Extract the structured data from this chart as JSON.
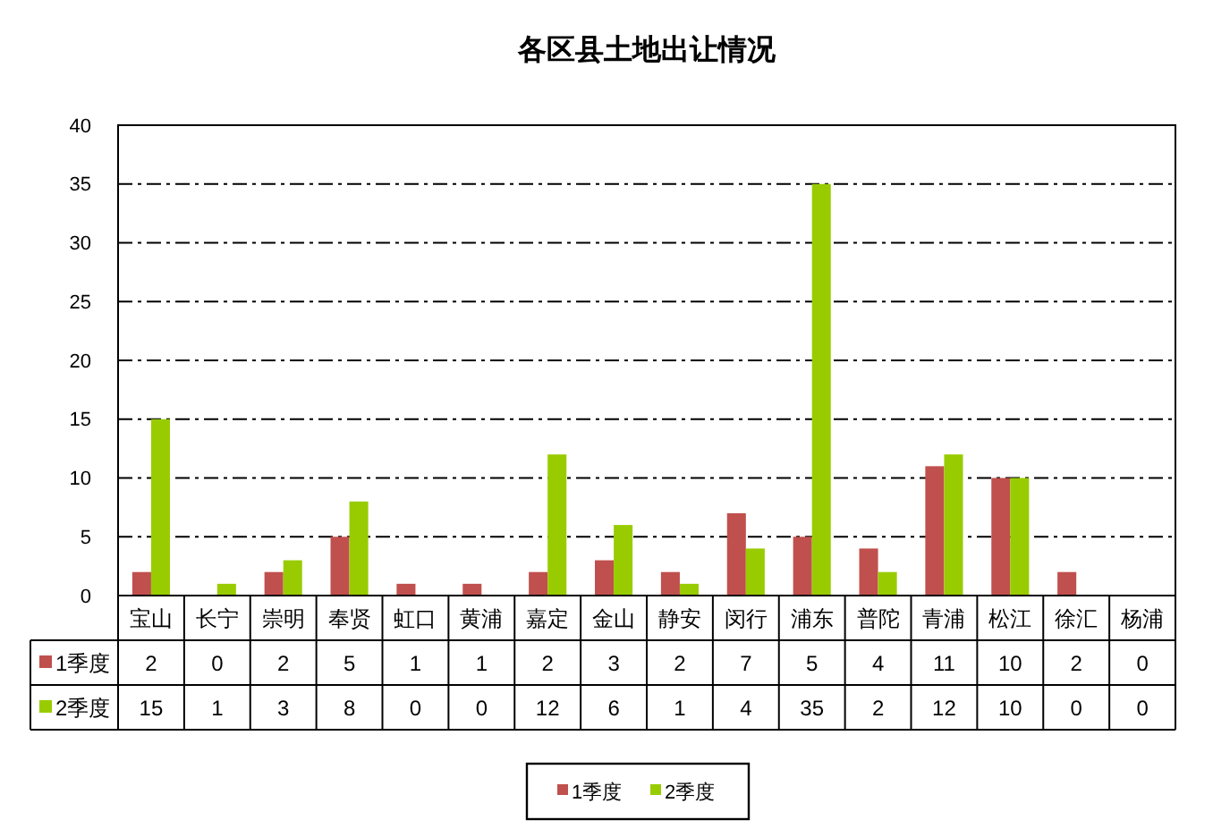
{
  "chart_data": {
    "type": "bar",
    "title": "各区县土地出让情况",
    "categories": [
      "宝山",
      "长宁",
      "崇明",
      "奉贤",
      "虹口",
      "黄浦",
      "嘉定",
      "金山",
      "静安",
      "闵行",
      "浦东",
      "普陀",
      "青浦",
      "松江",
      "徐汇",
      "杨浦"
    ],
    "series": [
      {
        "name": "1季度",
        "color": "#c0504d",
        "values": [
          2,
          0,
          2,
          5,
          1,
          1,
          2,
          3,
          2,
          7,
          5,
          4,
          11,
          10,
          2,
          0
        ]
      },
      {
        "name": "2季度",
        "color": "#99cc00",
        "values": [
          15,
          1,
          3,
          8,
          0,
          0,
          12,
          6,
          1,
          4,
          35,
          2,
          12,
          10,
          0,
          0
        ]
      }
    ],
    "ylim": [
      0,
      40
    ],
    "yticks": [
      0,
      5,
      10,
      15,
      20,
      25,
      30,
      35,
      40
    ],
    "grid": "y",
    "legend": "bottom",
    "data_labels": true
  }
}
